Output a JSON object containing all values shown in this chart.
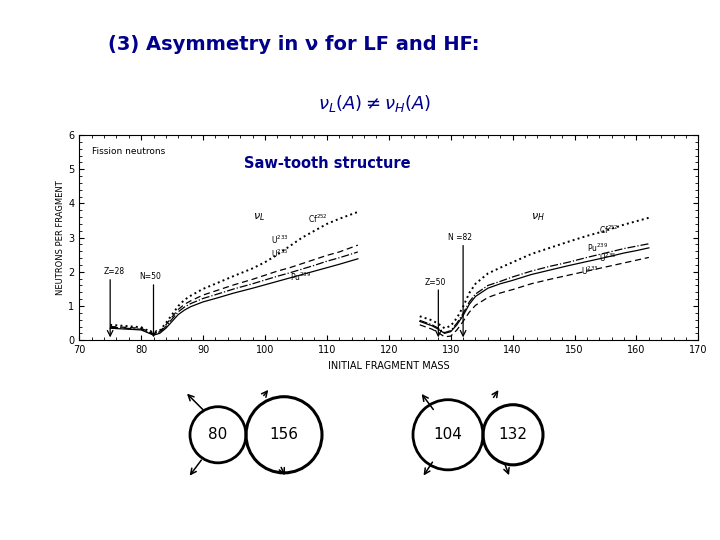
{
  "title_line1": "(3) Asymmetry in ν for LF and HF:",
  "title_line2_math": "$\\nu_L(A) \\neq \\nu_H(A)$",
  "subtitle": "Saw-tooth structure",
  "fission_label": "Fission neutrons",
  "xlabel": "INITIAL FRAGMENT MASS",
  "ylabel": "NEUTRONS PER FRAGMENT",
  "xlim": [
    70,
    170
  ],
  "ylim": [
    0,
    6
  ],
  "yticks": [
    0,
    1,
    2,
    3,
    4,
    5,
    6
  ],
  "xticks": [
    70,
    80,
    90,
    100,
    110,
    120,
    130,
    140,
    150,
    160,
    170
  ],
  "bg_header_color": "#cdf0ff",
  "title_color": "#00008B",
  "subtitle_color": "#00008B"
}
